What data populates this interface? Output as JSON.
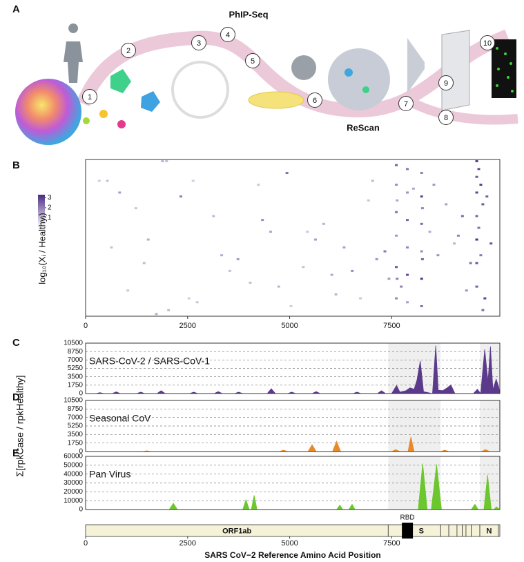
{
  "panel_a": {
    "panel_label": "A",
    "phip_seq": "PhIP-Seq",
    "rescan": "ReScan",
    "steps": [
      "1",
      "2",
      "3",
      "4",
      "5",
      "6",
      "7",
      "8",
      "9",
      "10"
    ]
  },
  "chart_data": [
    {
      "type": "heatmap",
      "panel_label": "B",
      "ylabel": "log₁₀(Xᵢ / Healthyᵢ)",
      "color": "#4b2a84",
      "xlim": [
        0,
        10150
      ],
      "xticks": [
        0,
        2500,
        5000,
        7500
      ],
      "ylim": [
        0,
        40
      ],
      "clim": [
        0,
        3.3
      ],
      "cticks": [
        1,
        2,
        3
      ],
      "cells": {
        "x": [
          1850,
          1950,
          300,
          500,
          800,
          1200,
          1500,
          2300,
          2600,
          3100,
          3700,
          4200,
          4500,
          4900,
          5300,
          5600,
          6100,
          6500,
          6900,
          7000,
          7580,
          7580,
          7580,
          7580,
          7580,
          7580,
          7600,
          7600,
          7850,
          7850,
          7850,
          7850,
          7850,
          7850,
          8200,
          8200,
          8200,
          8200,
          8200,
          8200,
          8220,
          8220,
          8400,
          8800,
          9000,
          9300,
          9550,
          9550,
          9550,
          9550,
          9550,
          9550,
          9550,
          9600,
          9600,
          9650,
          9650,
          9700,
          9700,
          9750,
          2000,
          2700,
          3300,
          4000,
          4300,
          5000,
          5800,
          6300,
          6700,
          7300,
          7400,
          8000,
          8600,
          9100,
          9400,
          600,
          1000,
          1400,
          1700,
          2500,
          3500,
          4700,
          5400,
          6000,
          7100,
          7700,
          8500,
          9200,
          9800,
          9900
        ],
        "y": [
          0,
          0,
          5,
          5,
          8,
          12,
          20,
          9,
          5,
          14,
          25,
          6,
          18,
          3,
          27,
          20,
          34,
          28,
          10,
          5,
          1,
          6,
          13,
          19,
          27,
          35,
          10,
          30,
          2,
          8,
          15,
          22,
          29,
          36,
          3,
          9,
          16,
          23,
          30,
          37,
          12,
          25,
          18,
          11,
          21,
          33,
          0,
          4,
          8,
          14,
          20,
          26,
          32,
          2,
          17,
          6,
          24,
          11,
          38,
          35,
          38,
          36,
          24,
          31,
          15,
          37,
          16,
          22,
          35,
          23,
          30,
          7,
          24,
          19,
          26,
          22,
          33,
          26,
          39,
          35,
          28,
          32,
          18,
          29,
          25,
          32,
          6,
          14,
          9,
          21
        ],
        "values": [
          1.2,
          1.0,
          0.8,
          1.0,
          1.5,
          0.9,
          1.3,
          2.0,
          0.8,
          1.1,
          1.6,
          0.9,
          1.4,
          2.2,
          1.0,
          1.5,
          1.2,
          1.8,
          0.9,
          1.1,
          2.5,
          1.8,
          2.2,
          1.6,
          2.6,
          1.9,
          1.4,
          2.0,
          2.1,
          1.7,
          2.4,
          1.9,
          2.8,
          1.5,
          2.0,
          2.9,
          2.3,
          1.8,
          3.1,
          2.2,
          1.9,
          2.4,
          1.3,
          1.5,
          1.2,
          1.7,
          3.0,
          2.6,
          2.9,
          2.4,
          3.2,
          2.7,
          2.5,
          2.8,
          2.2,
          3.0,
          2.1,
          2.6,
          2.3,
          2.9,
          1.1,
          0.9,
          1.3,
          1.0,
          1.8,
          0.8,
          1.2,
          1.5,
          0.9,
          2.1,
          1.6,
          1.4,
          1.7,
          1.9,
          2.2,
          1.0,
          0.9,
          1.1,
          1.3,
          0.8,
          1.0,
          1.2,
          0.9,
          1.4,
          1.7,
          2.0,
          1.6,
          2.3,
          2.5,
          2.7
        ]
      }
    },
    {
      "type": "area",
      "panel_label": "C",
      "label": "SARS-CoV-2 / SARS-CoV-1",
      "color": "#5b3a8c",
      "grid": true,
      "xlim": [
        0,
        10150
      ],
      "ylim": [
        0,
        10500
      ],
      "yticks": [
        0,
        1750,
        3500,
        5250,
        7000,
        8750,
        10500
      ],
      "highlight_ranges": [
        [
          7415,
          8700
        ],
        [
          9660,
          10150
        ]
      ],
      "x": [
        0,
        250,
        350,
        450,
        650,
        750,
        850,
        1250,
        1350,
        1450,
        1750,
        1850,
        1950,
        2550,
        2650,
        2750,
        3150,
        3250,
        3350,
        3650,
        3750,
        3850,
        4450,
        4550,
        4650,
        4950,
        5050,
        5150,
        5550,
        5650,
        5750,
        6550,
        6650,
        6750,
        7150,
        7250,
        7350,
        7500,
        7620,
        7700,
        7850,
        7950,
        8050,
        8120,
        8200,
        8280,
        8500,
        8580,
        8640,
        8750,
        8860,
        8950,
        9050,
        9500,
        9600,
        9680,
        9780,
        9860,
        9920,
        9980,
        10060,
        10120,
        10150
      ],
      "values": [
        0,
        0,
        200,
        0,
        0,
        350,
        0,
        0,
        300,
        0,
        0,
        600,
        0,
        0,
        300,
        0,
        0,
        400,
        0,
        0,
        300,
        0,
        0,
        1000,
        0,
        0,
        300,
        0,
        0,
        400,
        0,
        0,
        300,
        0,
        0,
        600,
        0,
        0,
        1700,
        300,
        600,
        1200,
        900,
        2800,
        6800,
        400,
        0,
        10000,
        700,
        600,
        1200,
        1800,
        0,
        0,
        900,
        0,
        9200,
        2500,
        9800,
        800,
        3000,
        1500,
        0
      ]
    },
    {
      "type": "area",
      "panel_label": "D",
      "label": "Seasonal CoV",
      "ylabel": "Σ[rpkCase / rpkHealthy]",
      "color": "#e8892a",
      "grid": true,
      "xlim": [
        0,
        10150
      ],
      "ylim": [
        0,
        10500
      ],
      "yticks": [
        0,
        1750,
        3500,
        5250,
        7000,
        8750,
        10500
      ],
      "highlight_ranges": [
        [
          7415,
          8700
        ],
        [
          9660,
          10150
        ]
      ],
      "x": [
        0,
        1400,
        1500,
        1600,
        4750,
        4850,
        4950,
        5450,
        5550,
        5650,
        6050,
        6150,
        6250,
        7500,
        7600,
        7700,
        7900,
        7970,
        8050,
        8200,
        8700,
        8800,
        8900,
        9700,
        9800,
        9900,
        10150
      ],
      "values": [
        0,
        0,
        150,
        0,
        0,
        300,
        0,
        0,
        1400,
        0,
        0,
        2100,
        0,
        0,
        400,
        0,
        0,
        3000,
        0,
        0,
        0,
        300,
        0,
        0,
        400,
        0,
        0
      ]
    },
    {
      "type": "area",
      "panel_label": "E",
      "label": "Pan Virus",
      "color": "#6cc72e",
      "grid": true,
      "xlim": [
        0,
        10150
      ],
      "ylim": [
        0,
        60000
      ],
      "yticks": [
        0,
        10000,
        20000,
        30000,
        40000,
        50000,
        60000
      ],
      "highlight_ranges": [
        [
          7415,
          8700
        ],
        [
          9660,
          10150
        ]
      ],
      "x": [
        0,
        2050,
        2150,
        2250,
        3850,
        3930,
        4010,
        4060,
        4130,
        4200,
        6150,
        6230,
        6300,
        6450,
        6530,
        6600,
        8150,
        8260,
        8370,
        8470,
        8600,
        8720,
        9450,
        9540,
        9620,
        9760,
        9850,
        9940,
        10000,
        10070,
        10150
      ],
      "values": [
        0,
        0,
        7000,
        0,
        0,
        11000,
        0,
        0,
        16000,
        0,
        0,
        5000,
        0,
        0,
        6000,
        0,
        0,
        52000,
        0,
        0,
        51000,
        0,
        0,
        6000,
        0,
        0,
        39000,
        0,
        0,
        3000,
        0
      ]
    },
    {
      "type": "genome",
      "xlabel": "SARS CoV−2 Reference Amino Acid Position",
      "xlim": [
        0,
        10150
      ],
      "xticks": [
        0,
        2500,
        5000,
        7500
      ],
      "boundaries": [
        0,
        7415,
        8700,
        8900,
        9100,
        9230,
        9320,
        9450,
        9660,
        10115,
        10150
      ],
      "labels": [
        "ORF1ab",
        "S",
        null,
        null,
        null,
        null,
        null,
        null,
        "N",
        null
      ],
      "rbd": {
        "label": "RBD",
        "range": [
          7750,
          8020
        ]
      }
    }
  ]
}
